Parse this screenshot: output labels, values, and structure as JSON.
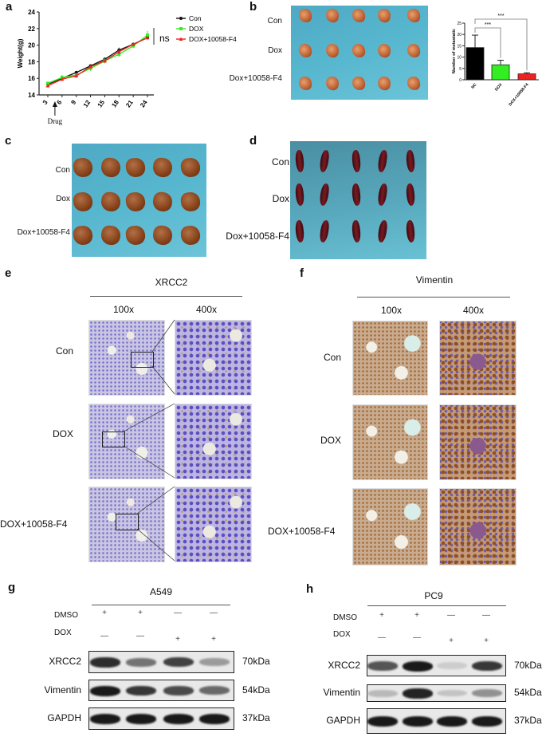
{
  "panel_labels": {
    "a": "a",
    "b": "b",
    "c": "c",
    "d": "d",
    "e": "e",
    "f": "f",
    "g": "g",
    "h": "h"
  },
  "chart_data": [
    {
      "type": "line",
      "title": "",
      "xlabel": "",
      "ylabel": "Weight(g)",
      "x": [
        3,
        6,
        9,
        12,
        15,
        18,
        21,
        24
      ],
      "xticks": [
        "3",
        "6",
        "9",
        "12",
        "15",
        "18",
        "21",
        "24"
      ],
      "yticks": [
        "14",
        "16",
        "18",
        "20",
        "22",
        "24"
      ],
      "ylim": [
        14,
        24
      ],
      "series": [
        {
          "name": "Con",
          "color": "#111111",
          "marker": "circle",
          "values": [
            15.3,
            16.0,
            16.7,
            17.5,
            18.3,
            19.4,
            20.1,
            20.9
          ],
          "errors": [
            0.2,
            0.2,
            0.2,
            0.2,
            0.2,
            0.3,
            0.2,
            0.2
          ]
        },
        {
          "name": "DOX",
          "color": "#33ee22",
          "marker": "square",
          "values": [
            15.4,
            16.1,
            16.4,
            17.2,
            18.1,
            18.9,
            19.9,
            21.2
          ],
          "errors": [
            0.2,
            0.3,
            0.2,
            0.3,
            0.3,
            0.3,
            0.2,
            0.5
          ]
        },
        {
          "name": "DOX+10058-F4",
          "color": "#ee2222",
          "marker": "triangle",
          "values": [
            15.1,
            15.9,
            16.3,
            17.4,
            18.1,
            19.2,
            20.1,
            20.9
          ],
          "errors": [
            0.2,
            0.2,
            0.2,
            0.2,
            0.2,
            0.3,
            0.2,
            0.2
          ]
        }
      ],
      "annotations": {
        "significance": "ns",
        "arrow_label": "Drug",
        "arrow_day": 4.5
      },
      "legend": "right"
    },
    {
      "type": "bar",
      "title": "",
      "xlabel": "",
      "ylabel": "Number of metastatic",
      "categories": [
        "NC",
        "DOX",
        "DOX+10058-F4"
      ],
      "values": [
        14.2,
        6.6,
        2.6
      ],
      "errors": [
        5.5,
        2.0,
        0.5
      ],
      "colors": [
        "#000000",
        "#33ee22",
        "#ee2222"
      ],
      "yticks": [
        "0",
        "5",
        "10",
        "15",
        "20",
        "25"
      ],
      "ylim": [
        0,
        25
      ],
      "significance": [
        {
          "pair": [
            "NC",
            "DOX"
          ],
          "label": "***"
        },
        {
          "pair": [
            "NC",
            "DOX+10058-F4"
          ],
          "label": "***"
        }
      ]
    }
  ],
  "panel_b": {
    "rows": [
      "Con",
      "Dox",
      "Dox+10058-F4"
    ]
  },
  "panel_c": {
    "rows": [
      "Con",
      "Dox",
      "Dox+10058-F4"
    ]
  },
  "panel_d": {
    "rows": [
      "Con",
      "Dox",
      "Dox+10058-F4"
    ]
  },
  "panel_e": {
    "title": "XRCC2",
    "cols": [
      "100x",
      "400x"
    ],
    "rows": [
      "Con",
      "DOX",
      "DOX+10058-F4"
    ]
  },
  "panel_f": {
    "title": "Vimentin",
    "cols": [
      "100x",
      "400x"
    ],
    "rows": [
      "Con",
      "DOX",
      "DOX+10058-F4"
    ]
  },
  "panel_g": {
    "title": "A549",
    "conditions": [
      {
        "name": "DMSO",
        "marks": [
          "+",
          "+",
          "—",
          "—"
        ]
      },
      {
        "name": "DOX",
        "marks": [
          "—",
          "—",
          "+",
          "+"
        ]
      }
    ],
    "blots": [
      {
        "name": "XRCC2",
        "size": "70kDa",
        "intensity": [
          0.9,
          0.55,
          0.8,
          0.35
        ]
      },
      {
        "name": "Vimentin",
        "size": "54kDa",
        "intensity": [
          1,
          0.85,
          0.75,
          0.6
        ]
      },
      {
        "name": "GAPDH",
        "size": "37kDa",
        "intensity": [
          1,
          1,
          1,
          1
        ]
      }
    ]
  },
  "panel_h": {
    "title": "PC9",
    "conditions": [
      {
        "name": "DMSO",
        "marks": [
          "+",
          "+",
          "—",
          "—"
        ]
      },
      {
        "name": "DOX",
        "marks": [
          "—",
          "—",
          "+",
          "+"
        ]
      }
    ],
    "blots": [
      {
        "name": "XRCC2",
        "size": "70kDa",
        "intensity": [
          0.7,
          1,
          0.1,
          0.85
        ]
      },
      {
        "name": "Vimentin",
        "size": "54kDa",
        "intensity": [
          0.2,
          0.95,
          0.15,
          0.4
        ]
      },
      {
        "name": "GAPDH",
        "size": "37kDa",
        "intensity": [
          1,
          1,
          1,
          1
        ]
      }
    ]
  }
}
